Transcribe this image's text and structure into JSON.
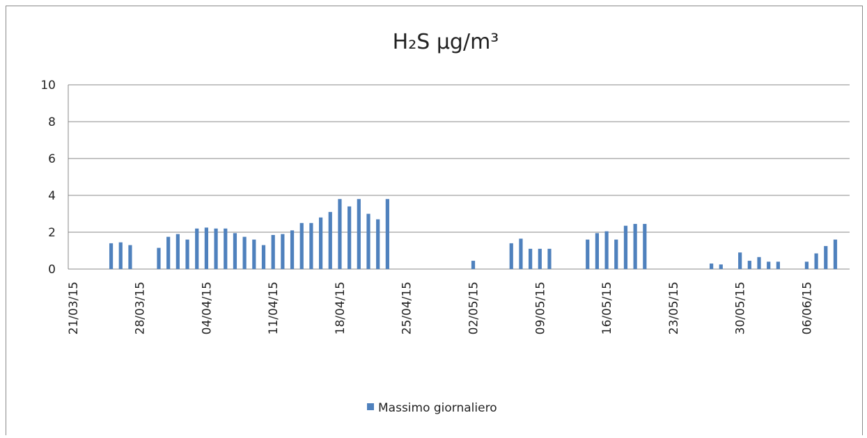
{
  "chart_data": {
    "type": "bar",
    "title": "H₂S µg/m³",
    "categories": [
      "21/03/15",
      null,
      null,
      null,
      null,
      null,
      null,
      "28/03/15",
      null,
      null,
      null,
      null,
      null,
      null,
      "04/04/15",
      null,
      null,
      null,
      null,
      null,
      null,
      "11/04/15",
      null,
      null,
      null,
      null,
      null,
      null,
      "18/04/15",
      null,
      null,
      null,
      null,
      null,
      null,
      "25/04/15",
      null,
      null,
      null,
      null,
      null,
      null,
      "02/05/15",
      null,
      null,
      null,
      null,
      null,
      null,
      "09/05/15",
      null,
      null,
      null,
      null,
      null,
      null,
      "16/05/15",
      null,
      null,
      null,
      null,
      null,
      null,
      "23/05/15",
      null,
      null,
      null,
      null,
      null,
      null,
      "30/05/15",
      null,
      null,
      null,
      null,
      null,
      null,
      "06/06/15",
      null,
      null,
      null,
      null
    ],
    "series": [
      {
        "name": "Massimo giornaliero",
        "color": "#4f81bd",
        "values": [
          null,
          null,
          null,
          null,
          1.4,
          1.45,
          1.3,
          null,
          null,
          1.15,
          1.75,
          1.9,
          1.6,
          2.2,
          2.25,
          2.2,
          2.2,
          1.95,
          1.75,
          1.6,
          1.3,
          1.85,
          1.9,
          2.1,
          2.5,
          2.5,
          2.8,
          3.1,
          3.8,
          3.4,
          3.8,
          3.0,
          2.7,
          3.8,
          null,
          null,
          null,
          null,
          null,
          null,
          null,
          null,
          0.45,
          null,
          null,
          null,
          1.4,
          1.65,
          1.1,
          1.1,
          1.1,
          null,
          null,
          null,
          1.6,
          1.95,
          2.05,
          1.6,
          2.35,
          2.45,
          2.45,
          null,
          null,
          null,
          null,
          null,
          null,
          0.3,
          0.25,
          null,
          0.9,
          0.45,
          0.65,
          0.4,
          0.4,
          null,
          null,
          0.4,
          0.85,
          1.25,
          1.6,
          null
        ]
      }
    ],
    "ylim": [
      0,
      10
    ],
    "yticks": [
      0,
      2,
      4,
      6,
      8,
      10
    ],
    "grid": true,
    "legend": "bottom"
  }
}
